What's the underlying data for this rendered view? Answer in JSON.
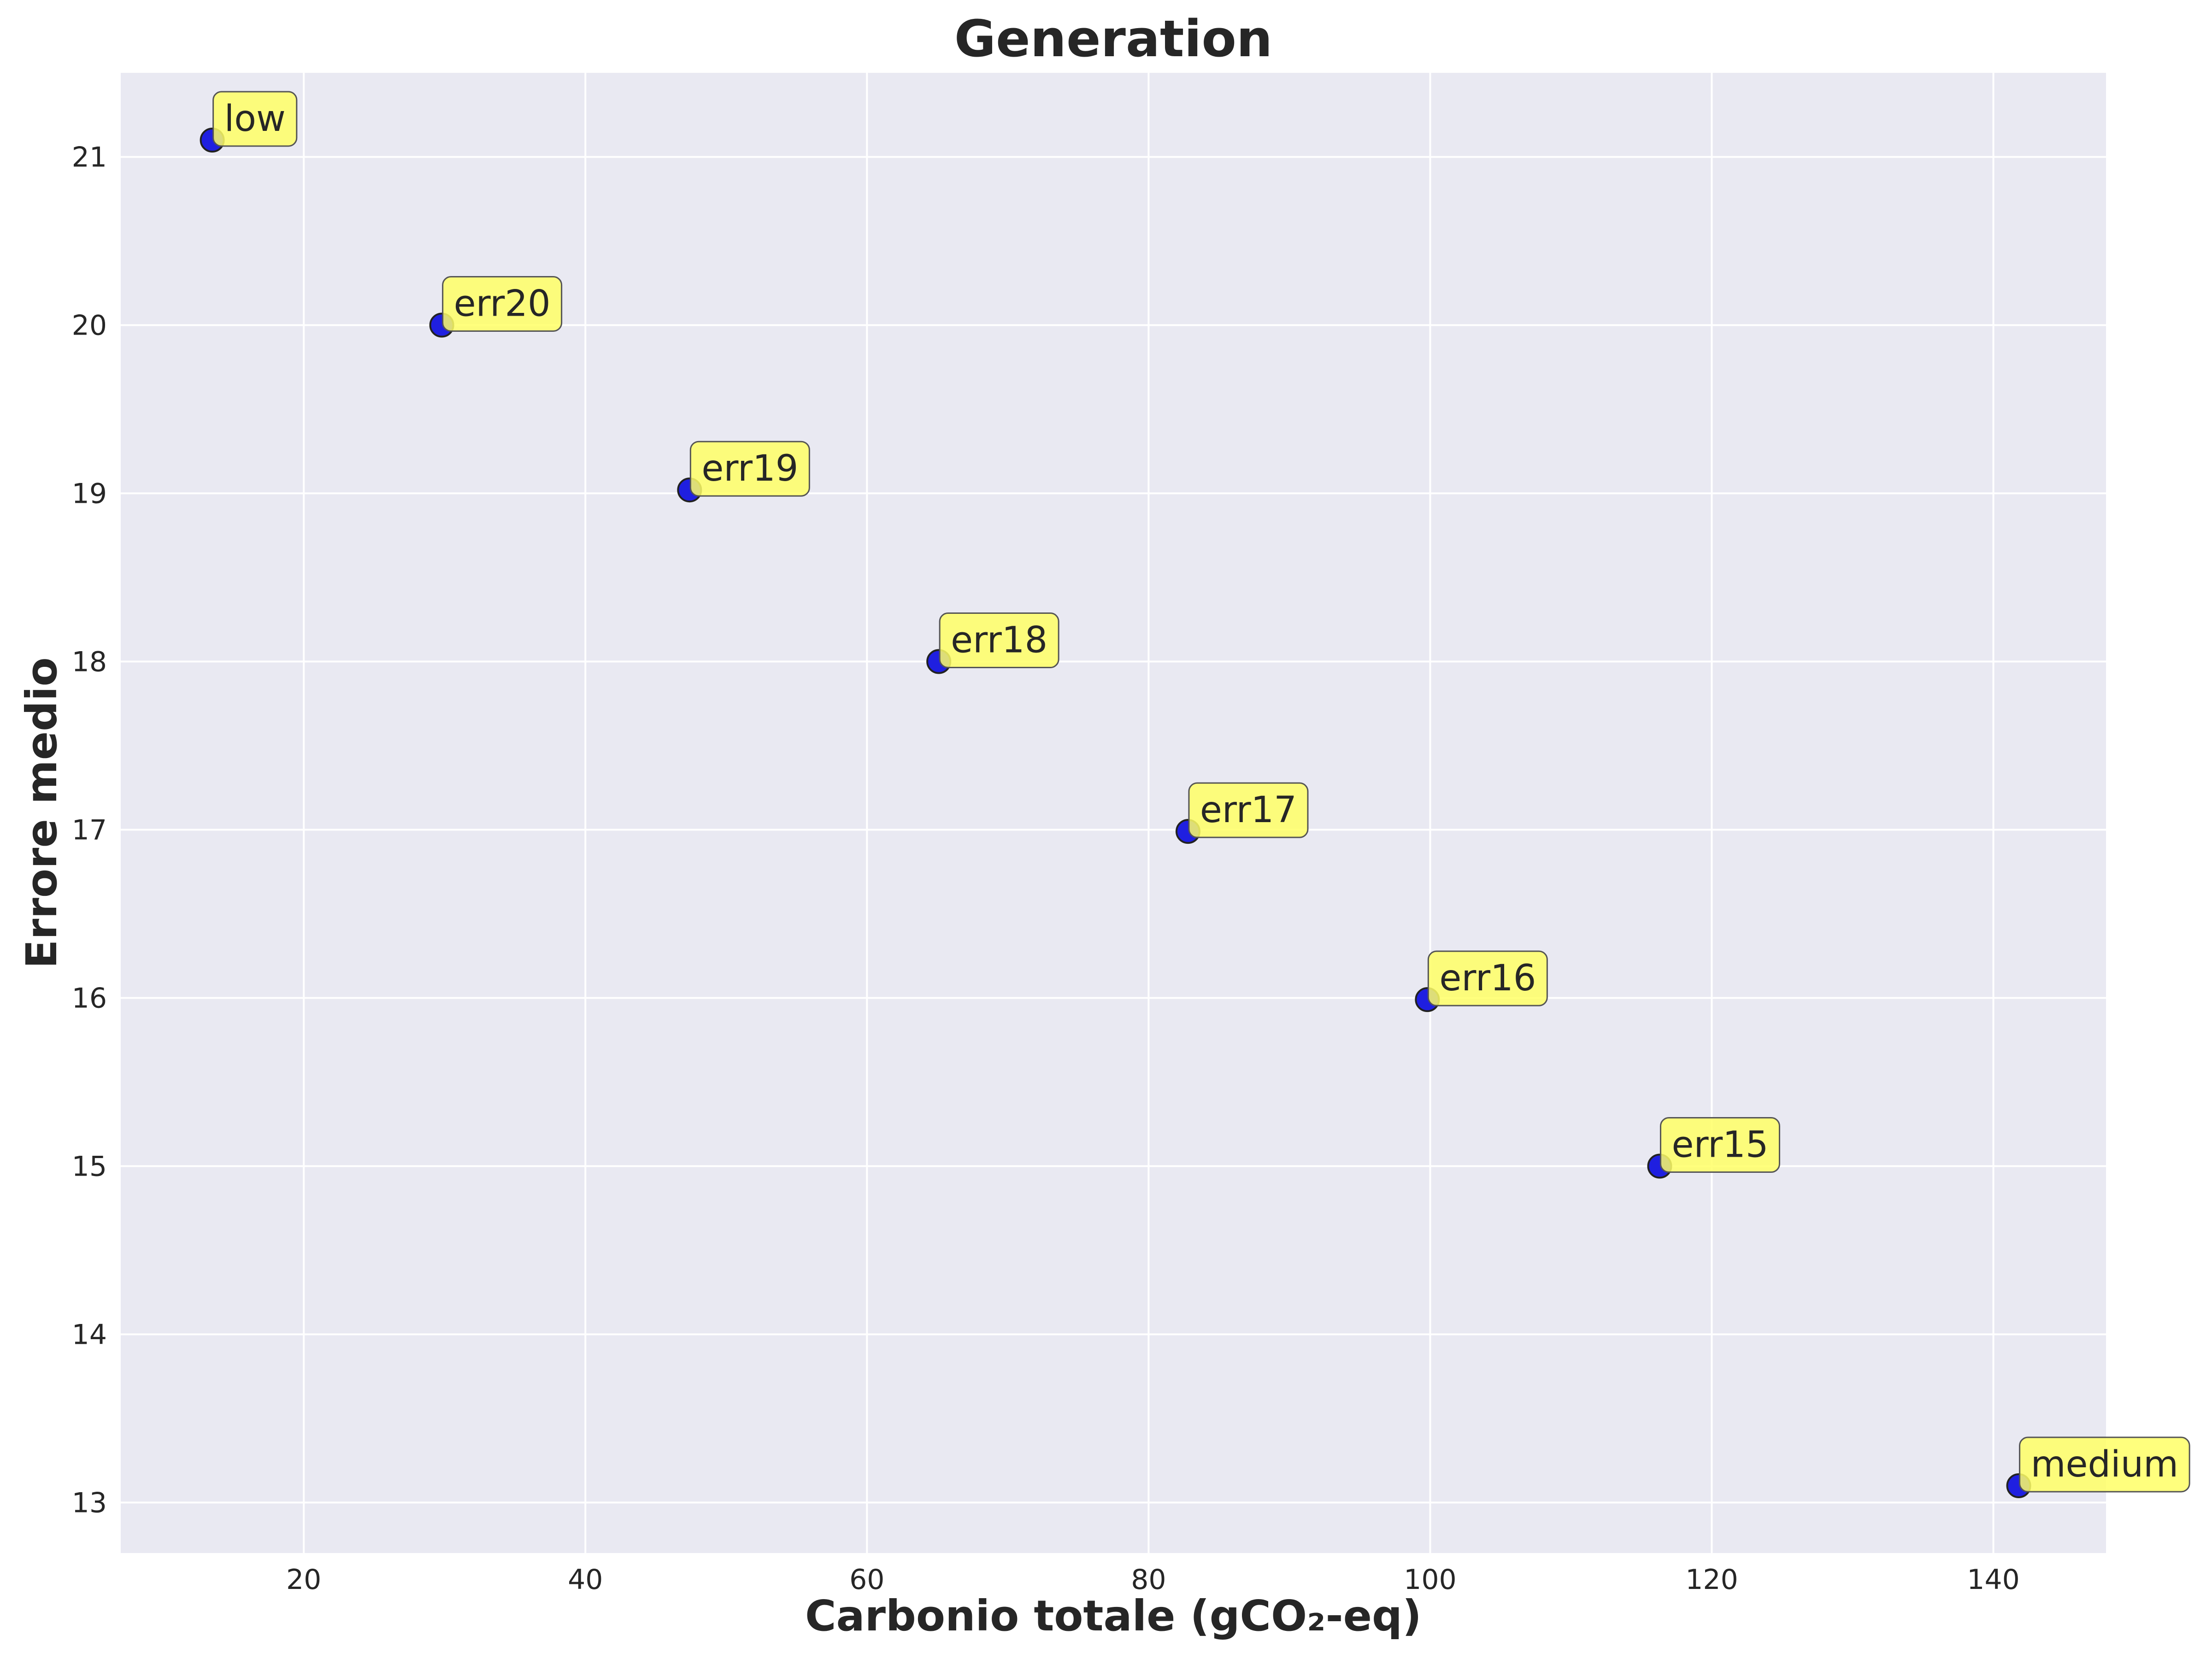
{
  "chart_data": {
    "type": "scatter",
    "title": "Generation",
    "xlabel": "Carbonio totale (gCO₂-eq)",
    "ylabel": "Errore medio",
    "xlim": [
      7,
      148
    ],
    "ylim": [
      12.7,
      21.5
    ],
    "xticks": [
      20,
      40,
      60,
      80,
      100,
      120,
      140
    ],
    "yticks": [
      13,
      14,
      15,
      16,
      17,
      18,
      19,
      20,
      21
    ],
    "grid": true,
    "background": "#e9e9f2",
    "marker_color": "#1f1fe0",
    "annotation_color": "#ffff66",
    "points": [
      {
        "label": "low",
        "x": 13.5,
        "y": 21.1
      },
      {
        "label": "err20",
        "x": 29.8,
        "y": 20.0
      },
      {
        "label": "err19",
        "x": 47.4,
        "y": 19.02
      },
      {
        "label": "err18",
        "x": 65.1,
        "y": 18.0
      },
      {
        "label": "err17",
        "x": 82.8,
        "y": 16.99
      },
      {
        "label": "err16",
        "x": 99.8,
        "y": 15.99
      },
      {
        "label": "err15",
        "x": 116.3,
        "y": 15.0
      },
      {
        "label": "medium",
        "x": 141.8,
        "y": 13.1
      }
    ]
  }
}
